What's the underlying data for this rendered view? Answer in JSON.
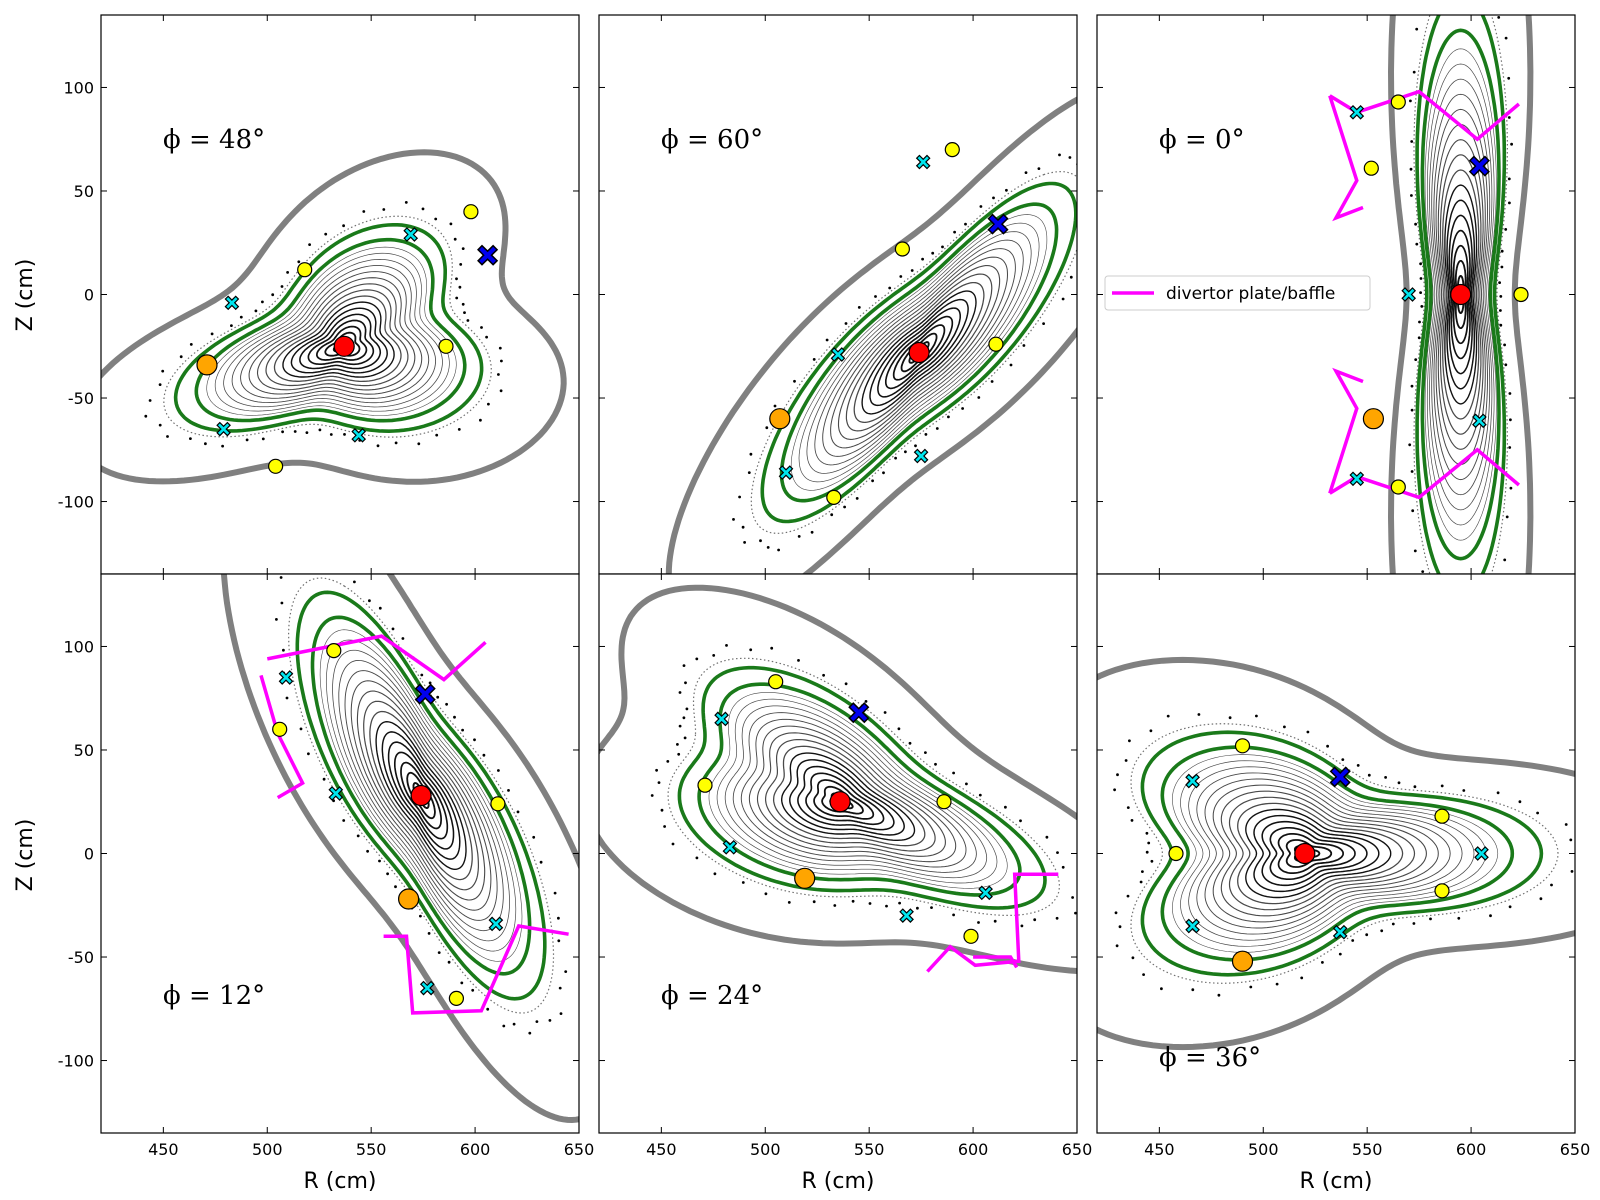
{
  "chart_data": {
    "type": "scatter",
    "xlabel": "R (cm)",
    "ylabel": "Z (cm)",
    "xlim": [
      420,
      650
    ],
    "ylim": [
      -135,
      135
    ],
    "xticks": [
      450,
      500,
      550,
      600,
      650
    ],
    "yticks": [
      -100,
      -50,
      0,
      50,
      100
    ],
    "grid": false,
    "legend": {
      "position": "upper-left of top-right panel",
      "entries": [
        "divertor plate/baffle"
      ]
    },
    "colors": {
      "wall": "#808080",
      "separatrix": "#1a7a1a",
      "flux": "#3a3a3a",
      "divertor": "#ff00ff",
      "axis_marker": "#ff0000",
      "x_point_main": "#0000ee",
      "x_point_island": "#00e5ee",
      "o_point_island": "#ffff00",
      "o_point_alt": "#ffa500"
    },
    "panels": [
      {
        "phi_label": "ϕ = 48°",
        "phi_pos": "upper-left",
        "angle": 48,
        "axis": [
          537,
          -25
        ],
        "theta": 20,
        "a": 60,
        "b": 38,
        "tri": 0.25,
        "tri_dir": 180,
        "bean": 0,
        "bean_dir": 0,
        "x_main": [
          606,
          19
        ],
        "x_isl": [
          [
            483,
            -4
          ],
          [
            569,
            29
          ],
          [
            544,
            -68
          ],
          [
            479,
            -65
          ]
        ],
        "o_isl": [
          [
            598,
            40
          ],
          [
            518,
            12
          ],
          [
            586,
            -25
          ],
          [
            504,
            -83
          ]
        ],
        "o_alt": [
          [
            471,
            -34
          ]
        ],
        "divertor": []
      },
      {
        "phi_label": "ϕ = 60°",
        "phi_pos": "upper-left",
        "angle": 60,
        "axis": [
          574,
          -28
        ],
        "theta": 55,
        "a": 78,
        "b": 30,
        "tri": 0,
        "tri_dir": 0,
        "bean": 0.3,
        "bean_dir": 145,
        "x_main": [
          612,
          34
        ],
        "x_isl": [
          [
            576,
            64
          ],
          [
            535,
            -29
          ],
          [
            575,
            -78
          ],
          [
            510,
            -86
          ]
        ],
        "o_isl": [
          [
            590,
            70
          ],
          [
            566,
            22
          ],
          [
            611,
            -24
          ],
          [
            533,
            -98
          ]
        ],
        "o_alt": [
          [
            507,
            -60
          ]
        ],
        "divertor": []
      },
      {
        "phi_label": "ϕ = 0°",
        "phi_pos": "upper-left",
        "angle": 0,
        "axis": [
          595,
          0
        ],
        "theta": 90,
        "a": 88,
        "b": 26,
        "tri": 0,
        "tri_dir": 0,
        "bean": 0.45,
        "bean_dir": 180,
        "x_main": [
          604,
          62
        ],
        "x_isl": [
          [
            545,
            88
          ],
          [
            570,
            0
          ],
          [
            604,
            -61
          ],
          [
            545,
            -89
          ]
        ],
        "o_isl": [
          [
            565,
            93
          ],
          [
            552,
            61
          ],
          [
            624,
            0
          ],
          [
            565,
            -93
          ]
        ],
        "o_alt": [
          [
            553,
            -60
          ]
        ],
        "divertor": [
          [
            [
              532,
              96
            ],
            [
              545,
              88
            ],
            [
              575,
              98
            ],
            [
              603,
              75
            ],
            [
              623,
              92
            ]
          ],
          [
            [
              532,
              96
            ],
            [
              545,
              55
            ],
            [
              535,
              37
            ],
            [
              548,
              42
            ]
          ],
          [
            [
              532,
              -96
            ],
            [
              545,
              -88
            ],
            [
              575,
              -98
            ],
            [
              603,
              -75
            ],
            [
              623,
              -92
            ]
          ],
          [
            [
              532,
              -96
            ],
            [
              545,
              -55
            ],
            [
              535,
              -37
            ],
            [
              548,
              -42
            ]
          ]
        ]
      },
      {
        "phi_label": "ϕ = 12°",
        "phi_pos": "lower-left",
        "angle": 12,
        "axis": [
          574,
          28
        ],
        "theta": 110,
        "a": 80,
        "b": 32,
        "tri": 0,
        "tri_dir": 0,
        "bean": 0.3,
        "bean_dir": 215,
        "x_main": [
          576,
          77
        ],
        "x_isl": [
          [
            509,
            85
          ],
          [
            533,
            29
          ],
          [
            610,
            -34
          ],
          [
            577,
            -65
          ]
        ],
        "o_isl": [
          [
            532,
            98
          ],
          [
            506,
            60
          ],
          [
            611,
            24
          ],
          [
            591,
            -70
          ]
        ],
        "o_alt": [
          [
            568,
            -22
          ]
        ],
        "divertor": [
          [
            [
              500,
              94
            ],
            [
              555,
              105
            ],
            [
              585,
              84
            ],
            [
              605,
              102
            ]
          ],
          [
            [
              497,
              86
            ],
            [
              505,
              58
            ],
            [
              517,
              34
            ],
            [
              505,
              27
            ]
          ],
          [
            [
              556,
              -40
            ],
            [
              567,
              -40
            ],
            [
              570,
              -77
            ],
            [
              603,
              -76
            ],
            [
              621,
              -35
            ],
            [
              645,
              -39
            ]
          ]
        ]
      },
      {
        "phi_label": "ϕ = 24°",
        "phi_pos": "lower-left",
        "angle": 24,
        "axis": [
          536,
          25
        ],
        "theta": 155,
        "a": 78,
        "b": 38,
        "tri": 0.2,
        "tri_dir": 65,
        "bean": 0,
        "bean_dir": 0,
        "x_main": [
          545,
          68
        ],
        "x_isl": [
          [
            479,
            65
          ],
          [
            483,
            3
          ],
          [
            568,
            -30
          ],
          [
            606,
            -19
          ]
        ],
        "o_isl": [
          [
            505,
            83
          ],
          [
            471,
            33
          ],
          [
            586,
            25
          ],
          [
            599,
            -40
          ]
        ],
        "o_alt": [
          [
            519,
            -12
          ]
        ],
        "divertor": [
          [
            [
              578,
              -57
            ],
            [
              589,
              -45
            ],
            [
              601,
              -54
            ],
            [
              622,
              -52
            ],
            [
              620,
              -10
            ],
            [
              641,
              -10
            ]
          ],
          [
            [
              600,
              -50
            ],
            [
              618,
              -50
            ],
            [
              621,
              -55
            ]
          ]
        ]
      },
      {
        "phi_label": "ϕ = 36°",
        "phi_pos": "lower-left",
        "angle": 36,
        "axis": [
          520,
          0
        ],
        "theta": 0,
        "a": 78,
        "b": 44,
        "tri": 0.28,
        "tri_dir": 0,
        "bean": 0,
        "bean_dir": 0,
        "x_main": [
          537,
          37
        ],
        "x_isl": [
          [
            466,
            35
          ],
          [
            605,
            0
          ],
          [
            537,
            -38
          ],
          [
            466,
            -35
          ]
        ],
        "o_isl": [
          [
            490,
            52
          ],
          [
            458,
            0
          ],
          [
            586,
            18
          ],
          [
            586,
            -18
          ]
        ],
        "o_alt": [
          [
            490,
            -52
          ]
        ],
        "divertor": []
      }
    ]
  }
}
